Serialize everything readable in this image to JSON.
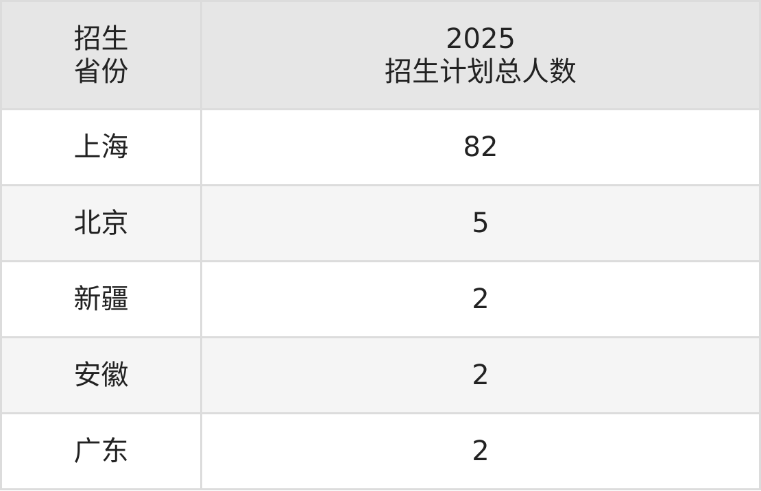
{
  "table": {
    "header": {
      "col1": [
        "招生",
        "省份"
      ],
      "col2": [
        "2025",
        "招生计划总人数"
      ]
    },
    "rows": [
      {
        "province": "上海",
        "count": "82"
      },
      {
        "province": "北京",
        "count": "5"
      },
      {
        "province": "新疆",
        "count": "2"
      },
      {
        "province": "安徽",
        "count": "2"
      },
      {
        "province": "广东",
        "count": "2"
      }
    ]
  },
  "colors": {
    "header_bg": "#e6e6e6",
    "alt_row_bg": "#f5f5f5",
    "border": "#dcdcdc"
  }
}
